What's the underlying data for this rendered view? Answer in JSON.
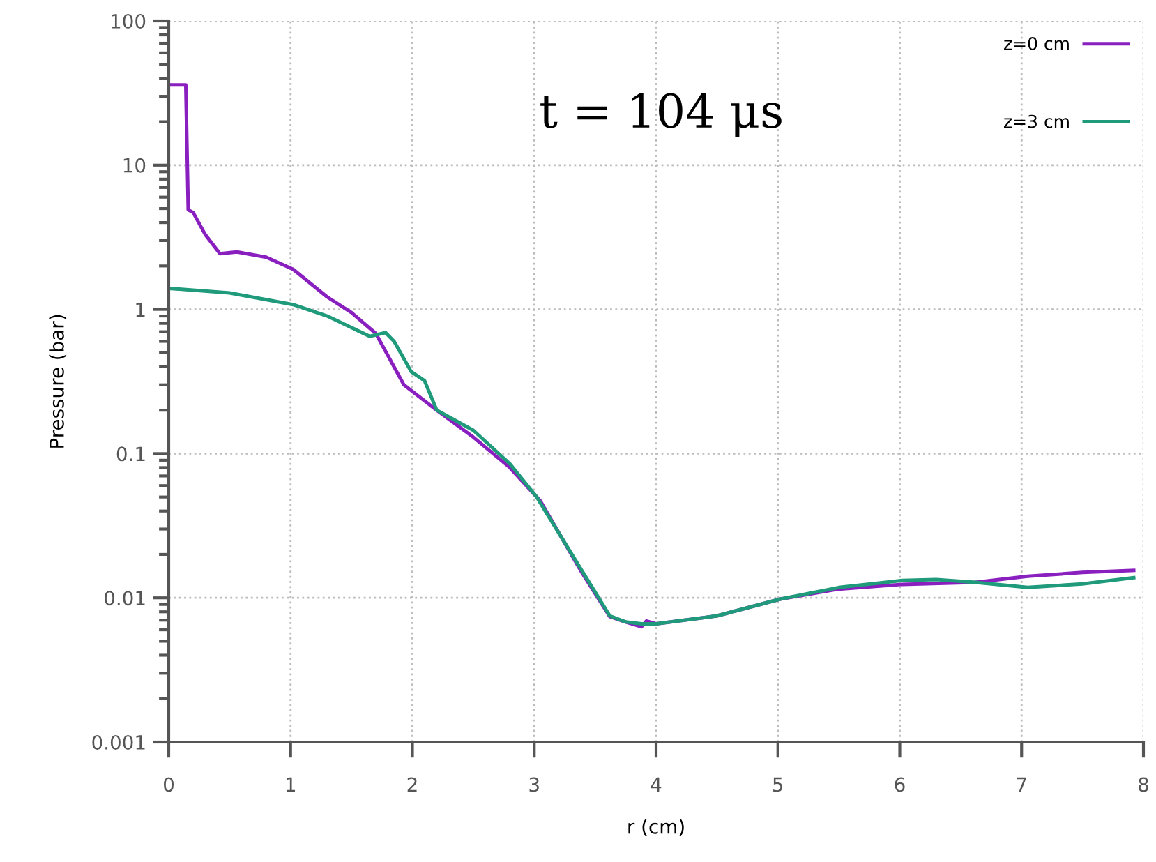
{
  "chart_data": {
    "type": "line",
    "xlabel": "r (cm)",
    "ylabel": "Pressure (bar)",
    "log": "y",
    "xlim": [
      0,
      8
    ],
    "xticks": [
      0,
      1,
      2,
      3,
      4,
      5,
      6,
      7,
      8
    ],
    "ylim": [
      0.001,
      100
    ],
    "yticks": [
      0.001,
      0.01,
      0.1,
      1,
      10,
      100
    ],
    "grid": true,
    "legend": "top right",
    "line_style": "solid",
    "marker": "none",
    "annotations": [
      "t = 104 μs"
    ],
    "series": [
      {
        "name": "z=0 cm",
        "color": "#8a1fc0",
        "x": [
          0,
          0.14,
          0.16,
          0.2,
          0.3,
          0.42,
          0.56,
          0.8,
          1.02,
          1.3,
          1.5,
          1.7,
          1.93,
          2.2,
          2.5,
          2.8,
          3.05,
          3.39,
          3.62,
          3.75,
          3.88,
          3.92,
          4.0,
          4.5,
          5.02,
          5.5,
          6.02,
          6.62,
          7.05,
          7.5,
          7.92
        ],
        "values": [
          36,
          36,
          4.9,
          4.7,
          3.3,
          2.43,
          2.5,
          2.3,
          1.9,
          1.22,
          0.95,
          0.68,
          0.3,
          0.2,
          0.13,
          0.08,
          0.047,
          0.015,
          0.0074,
          0.0068,
          0.0063,
          0.0069,
          0.0066,
          0.0075,
          0.0098,
          0.0115,
          0.0124,
          0.0128,
          0.0141,
          0.015,
          0.0155
        ]
      },
      {
        "name": "z=3 cm",
        "color": "#1f9a7a",
        "x": [
          0,
          0.5,
          1.02,
          1.3,
          1.65,
          1.78,
          1.85,
          1.99,
          2.1,
          2.2,
          2.5,
          2.8,
          3.02,
          3.39,
          3.62,
          3.75,
          3.88,
          4.0,
          4.5,
          5.02,
          5.5,
          6.02,
          6.3,
          6.62,
          7.05,
          7.5,
          7.92
        ],
        "values": [
          1.4,
          1.3,
          1.08,
          0.9,
          0.65,
          0.69,
          0.6,
          0.37,
          0.32,
          0.2,
          0.145,
          0.085,
          0.05,
          0.0155,
          0.0075,
          0.0068,
          0.0066,
          0.0066,
          0.0075,
          0.0098,
          0.0118,
          0.0132,
          0.0134,
          0.0128,
          0.0118,
          0.0125,
          0.0138
        ]
      }
    ]
  }
}
